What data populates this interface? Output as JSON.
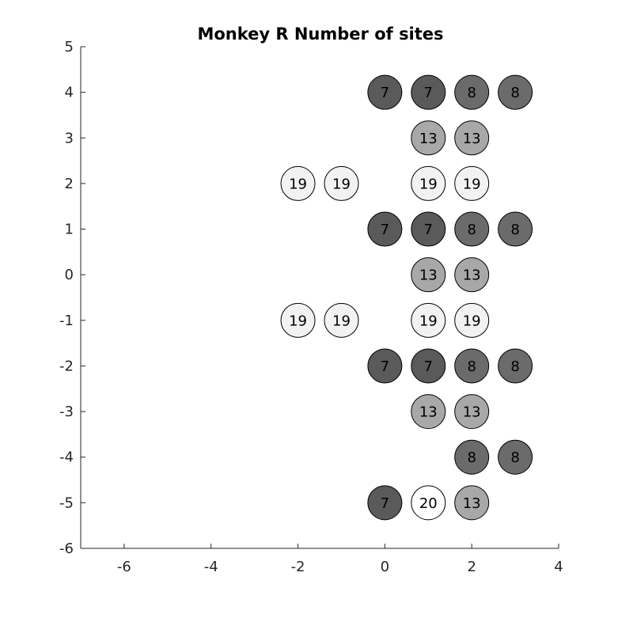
{
  "chart_data": {
    "type": "scatter",
    "title": "Monkey R Number of sites",
    "xlabel": "",
    "ylabel": "",
    "xlim": [
      -7,
      4
    ],
    "ylim": [
      -6,
      5
    ],
    "xticks": [
      -6,
      -4,
      -2,
      0,
      2,
      4
    ],
    "yticks": [
      5,
      4,
      3,
      2,
      1,
      0,
      -1,
      -2,
      -3,
      -4,
      -5,
      -6
    ],
    "grid": false,
    "points": [
      {
        "x": 0,
        "y": 4,
        "value": 7
      },
      {
        "x": 1,
        "y": 4,
        "value": 7
      },
      {
        "x": 2,
        "y": 4,
        "value": 8
      },
      {
        "x": 3,
        "y": 4,
        "value": 8
      },
      {
        "x": 1,
        "y": 3,
        "value": 13
      },
      {
        "x": 2,
        "y": 3,
        "value": 13
      },
      {
        "x": -2,
        "y": 2,
        "value": 19
      },
      {
        "x": -1,
        "y": 2,
        "value": 19
      },
      {
        "x": 1,
        "y": 2,
        "value": 19
      },
      {
        "x": 2,
        "y": 2,
        "value": 19
      },
      {
        "x": 0,
        "y": 1,
        "value": 7
      },
      {
        "x": 1,
        "y": 1,
        "value": 7
      },
      {
        "x": 2,
        "y": 1,
        "value": 8
      },
      {
        "x": 3,
        "y": 1,
        "value": 8
      },
      {
        "x": 1,
        "y": 0,
        "value": 13
      },
      {
        "x": 2,
        "y": 0,
        "value": 13
      },
      {
        "x": -2,
        "y": -1,
        "value": 19
      },
      {
        "x": -1,
        "y": -1,
        "value": 19
      },
      {
        "x": 1,
        "y": -1,
        "value": 19
      },
      {
        "x": 2,
        "y": -1,
        "value": 19
      },
      {
        "x": 0,
        "y": -2,
        "value": 7
      },
      {
        "x": 1,
        "y": -2,
        "value": 7
      },
      {
        "x": 2,
        "y": -2,
        "value": 8
      },
      {
        "x": 3,
        "y": -2,
        "value": 8
      },
      {
        "x": 1,
        "y": -3,
        "value": 13
      },
      {
        "x": 2,
        "y": -3,
        "value": 13
      },
      {
        "x": 2,
        "y": -4,
        "value": 8
      },
      {
        "x": 3,
        "y": -4,
        "value": 8
      },
      {
        "x": 0,
        "y": -5,
        "value": 7
      },
      {
        "x": 1,
        "y": -5,
        "value": 20
      },
      {
        "x": 2,
        "y": -5,
        "value": 13
      }
    ],
    "colors": {
      "7": "#5a5a5a",
      "8": "#6b6b6b",
      "13": "#a8a8a8",
      "19": "#f2f2f2",
      "20": "#ffffff",
      "axis": "#262626"
    }
  }
}
